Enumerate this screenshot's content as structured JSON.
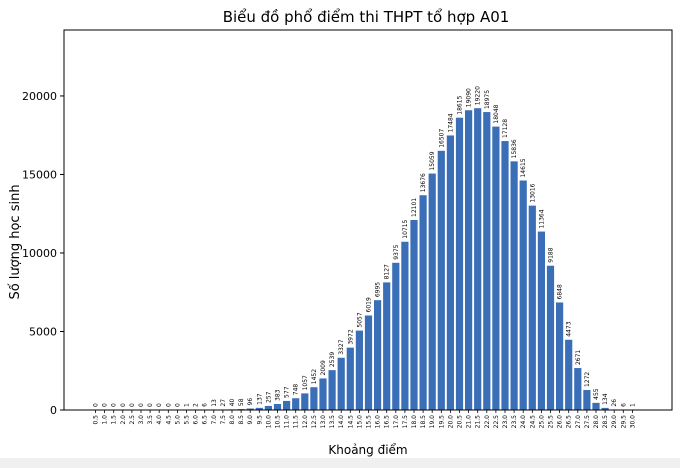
{
  "chart_data": {
    "type": "bar",
    "title": "Biểu đồ phổ điểm thi THPT tổ hợp A01",
    "xlabel": "Khoảng điểm",
    "ylabel": "Số lượng học sinh",
    "ylim": [
      0,
      24200
    ],
    "yticks": [
      0,
      5000,
      10000,
      15000,
      20000
    ],
    "grid": false,
    "bar_color": "#3a6fb8",
    "categories": [
      "0.5",
      "1.0",
      "1.5",
      "2.0",
      "2.5",
      "3.0",
      "3.5",
      "4.0",
      "4.5",
      "5.0",
      "5.5",
      "6.0",
      "6.5",
      "7.0",
      "7.5",
      "8.0",
      "8.5",
      "9.0",
      "9.5",
      "10.0",
      "10.5",
      "11.0",
      "11.5",
      "12.0",
      "12.5",
      "13.0",
      "13.5",
      "14.0",
      "14.5",
      "15.0",
      "15.5",
      "16.0",
      "16.5",
      "17.0",
      "17.5",
      "18.0",
      "18.5",
      "19.0",
      "19.5",
      "20.0",
      "20.5",
      "21.0",
      "21.5",
      "22.0",
      "22.5",
      "23.0",
      "23.5",
      "24.0",
      "24.5",
      "25.0",
      "25.5",
      "26.0",
      "26.5",
      "27.0",
      "27.5",
      "28.0",
      "28.5",
      "29.0",
      "29.5",
      "30.0"
    ],
    "values": [
      0,
      0,
      0,
      0,
      0,
      0,
      0,
      0,
      0,
      0,
      1,
      2,
      6,
      13,
      27,
      40,
      58,
      96,
      137,
      257,
      383,
      577,
      748,
      1057,
      1452,
      2009,
      2539,
      3327,
      3972,
      5057,
      6019,
      6995,
      8127,
      9375,
      10715,
      12101,
      13676,
      15059,
      16507,
      17484,
      18615,
      19090,
      19220,
      18975,
      18048,
      17128,
      15836,
      14615,
      13016,
      11364,
      9188,
      6848,
      4473,
      2671,
      1272,
      455,
      134,
      26,
      6,
      1
    ]
  }
}
